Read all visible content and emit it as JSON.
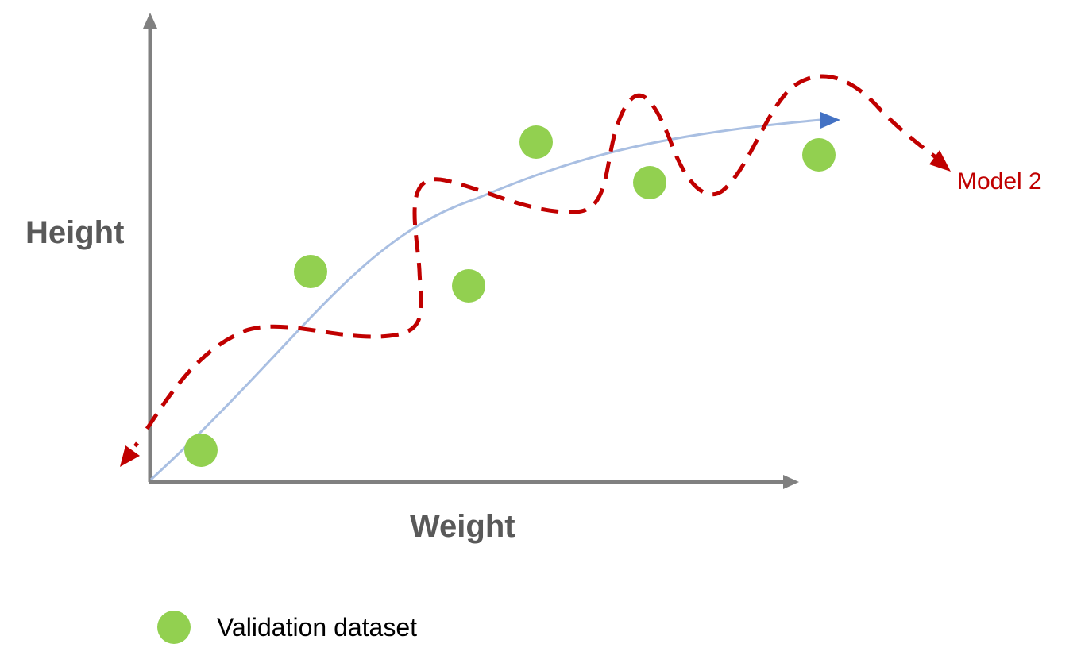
{
  "axes": {
    "y_label": "Height",
    "x_label": "Weight"
  },
  "model_label": "Model 2",
  "legend": {
    "label": "Validation dataset"
  },
  "colors": {
    "axis": "#808080",
    "label_text": "#595959",
    "points": "#92d050",
    "smooth_fit": "#a9bfe2",
    "smooth_arrow": "#4472c4",
    "overfit_model": "#c00000",
    "legend_text": "#000000"
  },
  "icons": {
    "data_point": "green-circle",
    "smooth_fit_end": "blue-arrowhead",
    "overfit_end": "red-arrowhead"
  }
}
